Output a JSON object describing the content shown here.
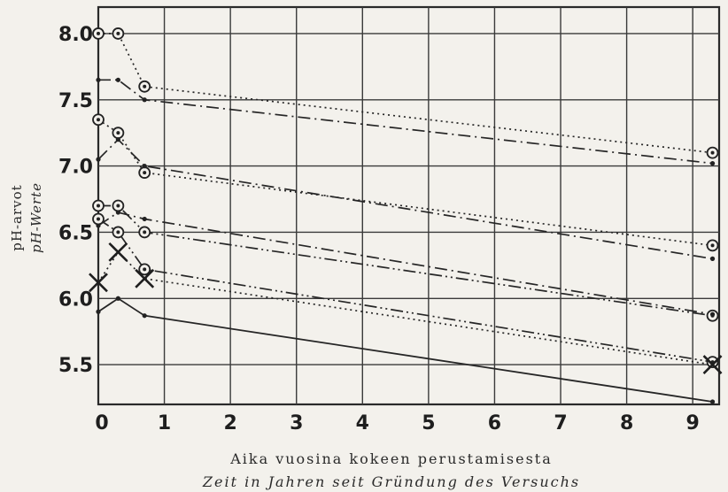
{
  "chart_data": {
    "type": "line",
    "xlabel": "Aika vuosina kokeen perustamisesta",
    "xlabel_sub": "Zeit in Jahren seit Gründung des Versuchs",
    "ylabel": "pH-arvot",
    "ylabel_sub": "pH-Werte",
    "xlim": [
      0,
      9.4
    ],
    "ylim": [
      5.2,
      8.2
    ],
    "x_ticks": [
      "0",
      "1",
      "2",
      "3",
      "4",
      "5",
      "6",
      "7",
      "8",
      "9"
    ],
    "y_ticks": [
      "5.5",
      "6.0",
      "6.5",
      "7.0",
      "7.5",
      "8.0"
    ],
    "grid": true,
    "series": [
      {
        "style": "dotted",
        "marker": "circle",
        "x": [
          0,
          0.3,
          0.7,
          9.3
        ],
        "y": [
          8.0,
          8.0,
          7.6,
          7.1
        ]
      },
      {
        "style": "dashdot",
        "marker": "dot",
        "x": [
          0,
          0.3,
          0.7,
          9.3
        ],
        "y": [
          7.65,
          7.65,
          7.5,
          7.02
        ]
      },
      {
        "style": "dotted",
        "marker": "circle",
        "x": [
          0,
          0.3,
          0.7,
          9.3
        ],
        "y": [
          7.35,
          7.25,
          6.95,
          6.4
        ]
      },
      {
        "style": "dashdot",
        "marker": "dot",
        "x": [
          0,
          0.3,
          0.7,
          9.3
        ],
        "y": [
          7.05,
          7.2,
          7.0,
          6.3
        ]
      },
      {
        "style": "dashdotdot",
        "marker": "circle",
        "x": [
          0,
          0.3,
          0.7,
          9.3
        ],
        "y": [
          6.7,
          6.7,
          6.5,
          5.87
        ]
      },
      {
        "style": "dashdot",
        "marker": "dot",
        "x": [
          0,
          0.3,
          0.7,
          9.3
        ],
        "y": [
          6.55,
          6.65,
          6.6,
          5.88
        ]
      },
      {
        "style": "dashdotdot",
        "marker": "circle",
        "x": [
          0,
          0.3,
          0.7,
          9.3
        ],
        "y": [
          6.6,
          6.5,
          6.22,
          5.52
        ]
      },
      {
        "style": "dotted",
        "marker": "cross",
        "x": [
          0,
          0.3,
          0.7,
          9.3
        ],
        "y": [
          6.12,
          6.35,
          6.15,
          5.5
        ]
      },
      {
        "style": "solid",
        "marker": "dot",
        "x": [
          0,
          0.3,
          0.7,
          9.3
        ],
        "y": [
          5.9,
          6.0,
          5.87,
          5.22
        ]
      }
    ]
  }
}
